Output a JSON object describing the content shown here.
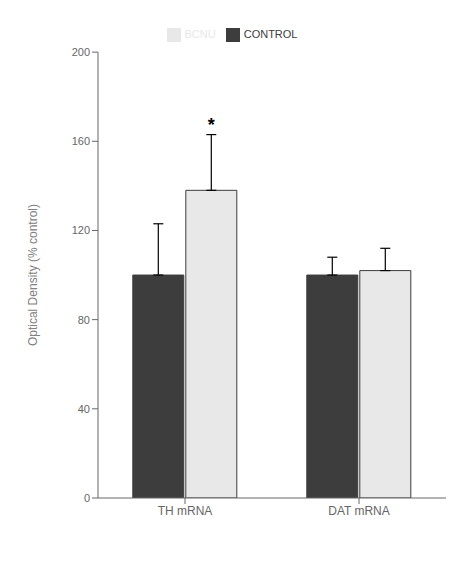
{
  "chart_data": {
    "type": "bar",
    "categories": [
      "TH mRNA",
      "DAT mRNA"
    ],
    "series": [
      {
        "name": "CONTROL",
        "color": "#3d3d3d",
        "values": [
          100,
          100
        ],
        "errors": [
          23,
          8
        ]
      },
      {
        "name": "BCNU",
        "color": "#e8e8e8",
        "values": [
          138,
          102
        ],
        "errors": [
          25,
          10
        ]
      }
    ],
    "ylabel": "Optical Density (% control)",
    "ylim": [
      0,
      200
    ],
    "yticks": [
      0,
      40,
      80,
      120,
      160,
      200
    ],
    "grid": false,
    "legend": "top",
    "annotations": [
      {
        "text": "*",
        "category": "TH mRNA",
        "series": "BCNU"
      }
    ]
  }
}
